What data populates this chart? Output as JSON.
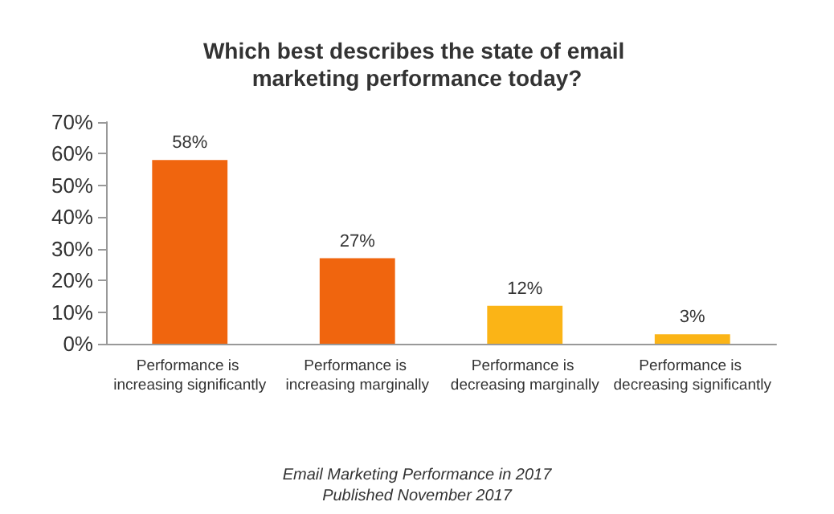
{
  "chart_data": {
    "type": "bar",
    "title": "Which best describes the state of email marketing performance today?",
    "categories": [
      "Performance is increasing significantly",
      "Performance is increasing marginally",
      "Performance is decreasing marginally",
      "Performance is decreasing significantly"
    ],
    "values": [
      58,
      27,
      12,
      3
    ],
    "colors": [
      "#f0650e",
      "#f0650e",
      "#fbb416",
      "#fbb416"
    ],
    "value_labels": [
      "58%",
      "27%",
      "12%",
      "3%"
    ],
    "ylim": [
      0,
      70
    ],
    "yticks": [
      {
        "value": 0,
        "label": "0%"
      },
      {
        "value": 10,
        "label": "10%"
      },
      {
        "value": 20,
        "label": "20%"
      },
      {
        "value": 30,
        "label": "30%"
      },
      {
        "value": 40,
        "label": "40%"
      },
      {
        "value": 50,
        "label": "50%"
      },
      {
        "value": 60,
        "label": "60%"
      },
      {
        "value": 70,
        "label": "70%"
      }
    ],
    "grid": false,
    "annotations": [
      "Email Marketing Performance in 2017",
      "Published November 2017"
    ]
  }
}
